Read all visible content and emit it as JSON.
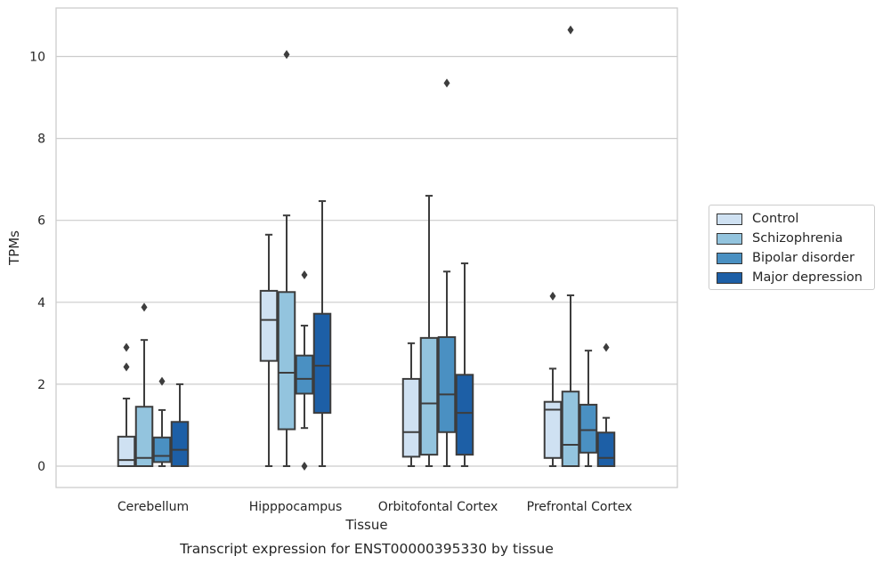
{
  "chart_data": {
    "type": "box",
    "title": "Transcript expression for ENST00000395330 by tissue",
    "xlabel": "Tissue",
    "ylabel": "TPMs",
    "ylim": [
      -0.5,
      11.2
    ],
    "yticks": [
      0,
      2,
      4,
      6,
      8,
      10
    ],
    "grid": "horizontal",
    "legend_position": "right",
    "categories": [
      "Cerebellum",
      "Hipppocampus",
      "Orbitofontal Cortex",
      "Prefrontal Cortex"
    ],
    "series": [
      {
        "name": "Control",
        "color": "#cfe1f2",
        "boxes": [
          {
            "whislo": 0.0,
            "q1": 0.0,
            "med": 0.15,
            "q3": 0.72,
            "whishi": 1.65,
            "fliers": [
              2.42,
              2.9
            ]
          },
          {
            "whislo": 0.0,
            "q1": 2.57,
            "med": 3.57,
            "q3": 4.28,
            "whishi": 5.65,
            "fliers": []
          },
          {
            "whislo": 0.0,
            "q1": 0.23,
            "med": 0.83,
            "q3": 2.13,
            "whishi": 3.0,
            "fliers": []
          },
          {
            "whislo": 0.0,
            "q1": 0.2,
            "med": 1.38,
            "q3": 1.57,
            "whishi": 2.38,
            "fliers": [
              4.15
            ]
          }
        ]
      },
      {
        "name": "Schizophrenia",
        "color": "#93c4de",
        "boxes": [
          {
            "whislo": 0.0,
            "q1": 0.0,
            "med": 0.2,
            "q3": 1.45,
            "whishi": 3.08,
            "fliers": [
              3.88
            ]
          },
          {
            "whislo": 0.0,
            "q1": 0.9,
            "med": 2.28,
            "q3": 4.25,
            "whishi": 6.12,
            "fliers": [
              10.05
            ]
          },
          {
            "whislo": 0.0,
            "q1": 0.28,
            "med": 1.53,
            "q3": 3.13,
            "whishi": 6.6,
            "fliers": []
          },
          {
            "whislo": 0.0,
            "q1": 0.0,
            "med": 0.52,
            "q3": 1.82,
            "whishi": 4.17,
            "fliers": [
              10.65
            ]
          }
        ]
      },
      {
        "name": "Bipolar disorder",
        "color": "#4a90c2",
        "boxes": [
          {
            "whislo": 0.0,
            "q1": 0.1,
            "med": 0.25,
            "q3": 0.7,
            "whishi": 1.37,
            "fliers": [
              2.07
            ]
          },
          {
            "whislo": 0.93,
            "q1": 1.77,
            "med": 2.13,
            "q3": 2.7,
            "whishi": 3.43,
            "fliers": [
              0.0,
              4.67
            ]
          },
          {
            "whislo": 0.0,
            "q1": 0.83,
            "med": 1.75,
            "q3": 3.15,
            "whishi": 4.75,
            "fliers": [
              9.35
            ]
          },
          {
            "whislo": 0.0,
            "q1": 0.33,
            "med": 0.88,
            "q3": 1.5,
            "whishi": 2.82,
            "fliers": []
          }
        ]
      },
      {
        "name": "Major depression",
        "color": "#1d5fa6",
        "boxes": [
          {
            "whislo": 0.0,
            "q1": 0.0,
            "med": 0.4,
            "q3": 1.08,
            "whishi": 2.0,
            "fliers": []
          },
          {
            "whislo": 0.0,
            "q1": 1.3,
            "med": 2.45,
            "q3": 3.72,
            "whishi": 6.47,
            "fliers": []
          },
          {
            "whislo": 0.0,
            "q1": 0.28,
            "med": 1.3,
            "q3": 2.23,
            "whishi": 4.95,
            "fliers": []
          },
          {
            "whislo": 0.0,
            "q1": 0.0,
            "med": 0.2,
            "q3": 0.82,
            "whishi": 1.18,
            "fliers": [
              2.9
            ]
          }
        ]
      }
    ]
  }
}
